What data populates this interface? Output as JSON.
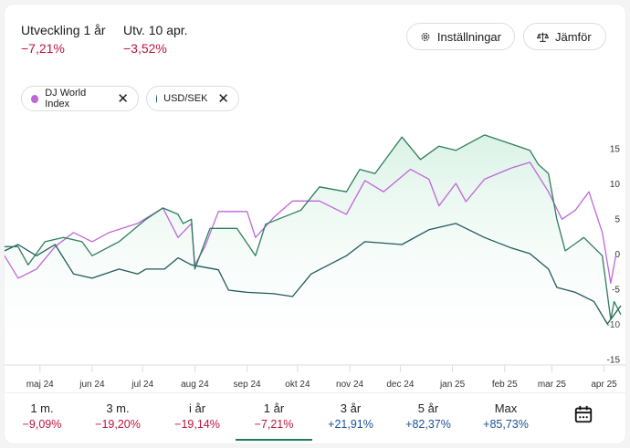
{
  "header": {
    "stats": [
      {
        "label": "Utveckling 1 år",
        "value": "−7,21%"
      },
      {
        "label": "Utv. 10 apr.",
        "value": "−3,52%"
      }
    ],
    "buttons": {
      "settings": "Inställningar",
      "compare": "Jämför"
    }
  },
  "chips": [
    {
      "label": "DJ World Index",
      "color": "#c066d8"
    },
    {
      "label": "USD/SEK",
      "color": "#1f5a5a"
    }
  ],
  "periods": [
    {
      "label": "1 m.",
      "value": "−9,09%",
      "sign": "neg"
    },
    {
      "label": "3 m.",
      "value": "−19,20%",
      "sign": "neg"
    },
    {
      "label": "i år",
      "value": "−19,14%",
      "sign": "neg"
    },
    {
      "label": "1 år",
      "value": "−7,21%",
      "sign": "neg",
      "active": true
    },
    {
      "label": "3 år",
      "value": "+21,91%",
      "sign": "pos"
    },
    {
      "label": "5 år",
      "value": "+82,37%",
      "sign": "pos"
    },
    {
      "label": "Max",
      "value": "+85,73%",
      "sign": "pos"
    }
  ],
  "icons": {
    "settings": "gear-icon",
    "compare": "scale-icon",
    "chip_remove": "close-icon",
    "calendar": "calendar-icon"
  },
  "chart_data": {
    "type": "line",
    "xrange": [
      "2024-04-10",
      "2025-04-11"
    ],
    "ylim": [
      -15,
      18
    ],
    "yticks": [
      15,
      10,
      5,
      0,
      -5,
      -10,
      -15
    ],
    "ytick_labels": [
      "15",
      "10",
      "5",
      "0",
      "-5",
      "-10",
      "-15"
    ],
    "xticks": [
      {
        "date": "2024-05-01",
        "label": "maj 24"
      },
      {
        "date": "2024-06-01",
        "label": "jun 24"
      },
      {
        "date": "2024-07-01",
        "label": "jul 24"
      },
      {
        "date": "2024-08-01",
        "label": "aug 24"
      },
      {
        "date": "2024-09-01",
        "label": "sep 24"
      },
      {
        "date": "2024-10-01",
        "label": "okt 24"
      },
      {
        "date": "2024-11-01",
        "label": "nov 24"
      },
      {
        "date": "2024-12-01",
        "label": "dec 24"
      },
      {
        "date": "2025-01-01",
        "label": "jan 25"
      },
      {
        "date": "2025-02-01",
        "label": "feb 25"
      },
      {
        "date": "2025-03-01",
        "label": "mar 25"
      },
      {
        "date": "2025-04-01",
        "label": "apr 25"
      }
    ],
    "grid": false,
    "y_axis_side": "right",
    "series": [
      {
        "color": "#2e7d5b",
        "fill": true,
        "points": [
          [
            "2024-04-10",
            1.0
          ],
          [
            "2024-04-18",
            1.0
          ],
          [
            "2024-04-24",
            -1.6
          ],
          [
            "2024-05-04",
            1.7
          ],
          [
            "2024-05-15",
            2.3
          ],
          [
            "2024-05-26",
            1.7
          ],
          [
            "2024-06-01",
            -0.3
          ],
          [
            "2024-06-17",
            1.7
          ],
          [
            "2024-07-03",
            4.9
          ],
          [
            "2024-07-13",
            6.5
          ],
          [
            "2024-07-22",
            5.6
          ],
          [
            "2024-07-25",
            4.3
          ],
          [
            "2024-07-30",
            4.9
          ],
          [
            "2024-08-01",
            -2.2
          ],
          [
            "2024-08-10",
            3.6
          ],
          [
            "2024-08-26",
            3.6
          ],
          [
            "2024-09-06",
            -0.3
          ],
          [
            "2024-09-12",
            4.2
          ],
          [
            "2024-10-03",
            6.2
          ],
          [
            "2024-10-14",
            9.5
          ],
          [
            "2024-10-30",
            8.8
          ],
          [
            "2024-11-07",
            12.0
          ],
          [
            "2024-11-16",
            11.4
          ],
          [
            "2024-12-02",
            16.6
          ],
          [
            "2024-12-13",
            13.4
          ],
          [
            "2024-12-24",
            15.3
          ],
          [
            "2025-01-03",
            14.7
          ],
          [
            "2025-01-20",
            16.9
          ],
          [
            "2025-01-31",
            16.0
          ],
          [
            "2025-02-16",
            14.7
          ],
          [
            "2025-02-21",
            12.7
          ],
          [
            "2025-02-27",
            11.4
          ],
          [
            "2025-03-04",
            4.9
          ],
          [
            "2025-03-09",
            0.4
          ],
          [
            "2025-03-20",
            2.3
          ],
          [
            "2025-03-31",
            -0.3
          ],
          [
            "2025-04-05",
            -9.4
          ],
          [
            "2025-04-07",
            -6.8
          ],
          [
            "2025-04-11",
            -8.7
          ]
        ]
      },
      {
        "name": "DJ World Index",
        "color": "#c066d8",
        "fill": false,
        "points": [
          [
            "2024-04-10",
            -0.3
          ],
          [
            "2024-04-18",
            -3.5
          ],
          [
            "2024-04-29",
            -2.2
          ],
          [
            "2024-05-10",
            1.0
          ],
          [
            "2024-05-21",
            3.0
          ],
          [
            "2024-06-01",
            1.7
          ],
          [
            "2024-06-11",
            3.0
          ],
          [
            "2024-06-28",
            4.3
          ],
          [
            "2024-07-13",
            6.5
          ],
          [
            "2024-07-22",
            2.3
          ],
          [
            "2024-07-30",
            4.3
          ],
          [
            "2024-08-01",
            -1.6
          ],
          [
            "2024-08-07",
            1.0
          ],
          [
            "2024-08-15",
            6.0
          ],
          [
            "2024-09-01",
            6.0
          ],
          [
            "2024-09-06",
            2.3
          ],
          [
            "2024-09-17",
            5.2
          ],
          [
            "2024-09-28",
            7.5
          ],
          [
            "2024-10-14",
            7.5
          ],
          [
            "2024-10-30",
            5.6
          ],
          [
            "2024-11-10",
            10.4
          ],
          [
            "2024-11-21",
            8.8
          ],
          [
            "2024-12-07",
            12.0
          ],
          [
            "2024-12-18",
            10.6
          ],
          [
            "2024-12-24",
            6.8
          ],
          [
            "2025-01-03",
            10.0
          ],
          [
            "2025-01-09",
            7.4
          ],
          [
            "2025-01-20",
            10.6
          ],
          [
            "2025-02-05",
            12.2
          ],
          [
            "2025-02-16",
            13.0
          ],
          [
            "2025-02-27",
            8.8
          ],
          [
            "2025-03-07",
            4.9
          ],
          [
            "2025-03-15",
            6.2
          ],
          [
            "2025-03-23",
            8.8
          ],
          [
            "2025-03-31",
            3.0
          ],
          [
            "2025-04-05",
            -4.2
          ],
          [
            "2025-04-08",
            -0.3
          ]
        ]
      },
      {
        "name": "USD/SEK",
        "color": "#1f5a5a",
        "fill": false,
        "points": [
          [
            "2024-04-10",
            0.4
          ],
          [
            "2024-04-18",
            1.3
          ],
          [
            "2024-04-29",
            -0.3
          ],
          [
            "2024-05-10",
            1.3
          ],
          [
            "2024-05-21",
            -2.9
          ],
          [
            "2024-06-01",
            -3.5
          ],
          [
            "2024-06-17",
            -2.2
          ],
          [
            "2024-06-28",
            -2.9
          ],
          [
            "2024-07-03",
            -2.2
          ],
          [
            "2024-07-14",
            -2.2
          ],
          [
            "2024-07-22",
            -0.6
          ],
          [
            "2024-07-30",
            -1.6
          ],
          [
            "2024-08-15",
            -2.3
          ],
          [
            "2024-08-21",
            -5.2
          ],
          [
            "2024-09-01",
            -5.5
          ],
          [
            "2024-09-17",
            -5.7
          ],
          [
            "2024-09-28",
            -6.1
          ],
          [
            "2024-10-09",
            -2.9
          ],
          [
            "2024-10-30",
            -0.3
          ],
          [
            "2024-11-10",
            1.7
          ],
          [
            "2024-12-02",
            1.3
          ],
          [
            "2024-12-18",
            3.4
          ],
          [
            "2025-01-03",
            4.3
          ],
          [
            "2025-01-20",
            2.3
          ],
          [
            "2025-02-05",
            0.8
          ],
          [
            "2025-02-16",
            0.0
          ],
          [
            "2025-02-27",
            -2.2
          ],
          [
            "2025-03-04",
            -4.8
          ],
          [
            "2025-03-15",
            -5.5
          ],
          [
            "2025-03-26",
            -6.8
          ],
          [
            "2025-04-03",
            -10.0
          ],
          [
            "2025-04-11",
            -7.4
          ]
        ]
      }
    ]
  }
}
